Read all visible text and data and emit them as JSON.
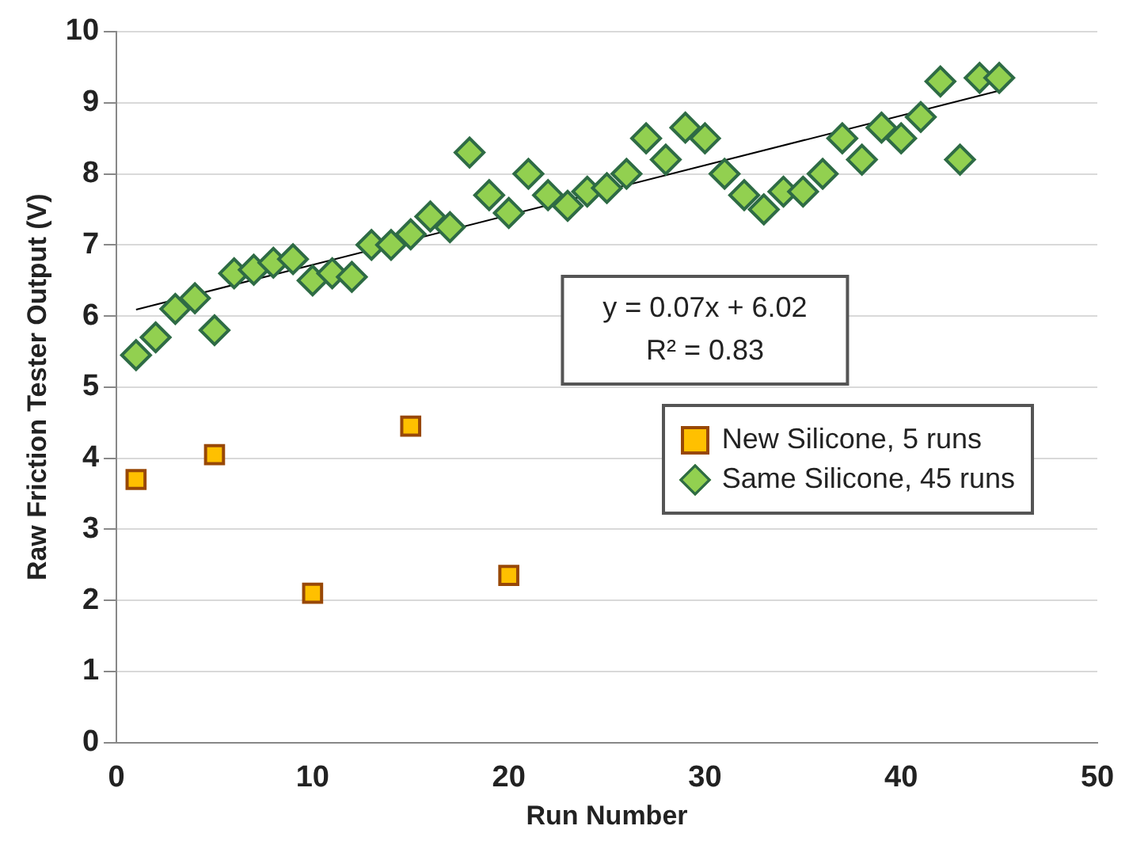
{
  "chart_data": {
    "type": "scatter",
    "xlabel": "Run Number",
    "ylabel": "Raw Friction Tester Output (V)",
    "xlim": [
      0,
      50
    ],
    "xticks": [
      0,
      10,
      20,
      30,
      40,
      50
    ],
    "ylim": [
      0,
      10
    ],
    "yticks": [
      0,
      1,
      2,
      3,
      4,
      5,
      6,
      7,
      8,
      9,
      10
    ],
    "grid": "y",
    "legend": "right",
    "annotations": [
      "y = 0.07x + 6.02",
      "R² = 0.83"
    ],
    "series": [
      {
        "name": "New Silicone, 5 runs",
        "color": "#ffc000",
        "marker": "square",
        "x": [
          1,
          5,
          10,
          15,
          20
        ],
        "values": [
          3.7,
          4.05,
          2.1,
          4.45,
          2.35
        ]
      },
      {
        "name": "Same Silicone, 45 runs",
        "color": "#92d050",
        "marker": "diamond",
        "x": [
          1,
          2,
          3,
          4,
          5,
          6,
          7,
          8,
          9,
          10,
          11,
          12,
          13,
          14,
          15,
          16,
          17,
          18,
          19,
          20,
          21,
          22,
          23,
          24,
          25,
          26,
          27,
          28,
          29,
          30,
          31,
          32,
          33,
          34,
          35,
          36,
          37,
          38,
          39,
          40,
          41,
          42,
          43,
          44,
          45
        ],
        "values": [
          5.45,
          5.7,
          6.1,
          6.25,
          5.8,
          6.6,
          6.65,
          6.75,
          6.8,
          6.5,
          6.6,
          6.55,
          7.0,
          7.0,
          7.15,
          7.4,
          7.25,
          8.3,
          7.7,
          7.45,
          8.0,
          7.7,
          7.55,
          7.75,
          7.8,
          8.0,
          8.5,
          8.2,
          8.65,
          8.5,
          8.0,
          7.7,
          7.5,
          7.75,
          7.75,
          8.0,
          8.5,
          8.2,
          8.65,
          8.5,
          8.8,
          9.3,
          8.2,
          9.35,
          9.35
        ]
      },
      {
        "type": "line",
        "color": "#000000",
        "marker": "none",
        "x": [
          1,
          45
        ],
        "values": [
          6.09,
          9.17
        ]
      }
    ]
  }
}
